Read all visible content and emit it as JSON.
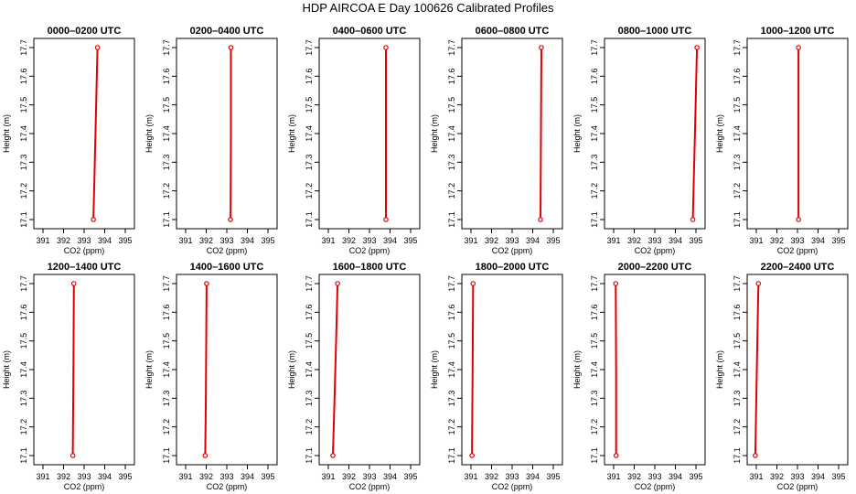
{
  "figure": {
    "title": "HDP AIRCOA E  Day 100626  Calibrated Profiles"
  },
  "chart_data": [
    {
      "type": "line",
      "title": "0000–0200 UTC",
      "xlabel": "CO2 (ppm)",
      "ylabel": "Height (m)",
      "xlim": [
        391,
        395
      ],
      "ylim": [
        17.1,
        17.7
      ],
      "xticks": [
        391,
        392,
        393,
        394,
        395
      ],
      "yticks": [
        17.1,
        17.2,
        17.3,
        17.4,
        17.5,
        17.6,
        17.7
      ],
      "grid": false,
      "series": [
        {
          "x": [
            393.45,
            393.5,
            393.55,
            393.6,
            393.65
          ],
          "y": [
            17.1,
            17.25,
            17.4,
            17.55,
            17.7
          ]
        }
      ],
      "markers": [
        {
          "x": 393.45,
          "y": 17.1
        },
        {
          "x": 393.65,
          "y": 17.7
        }
      ]
    },
    {
      "type": "line",
      "title": "0200–0400 UTC",
      "xlabel": "CO2 (ppm)",
      "ylabel": "Height (m)",
      "xlim": [
        391,
        395
      ],
      "ylim": [
        17.1,
        17.7
      ],
      "xticks": [
        391,
        392,
        393,
        394,
        395
      ],
      "yticks": [
        17.1,
        17.2,
        17.3,
        17.4,
        17.5,
        17.6,
        17.7
      ],
      "grid": false,
      "series": [
        {
          "x": [
            393.18,
            393.2,
            393.2
          ],
          "y": [
            17.1,
            17.4,
            17.7
          ]
        }
      ],
      "markers": [
        {
          "x": 393.18,
          "y": 17.1
        },
        {
          "x": 393.2,
          "y": 17.7
        }
      ]
    },
    {
      "type": "line",
      "title": "0400–0600 UTC",
      "xlabel": "CO2 (ppm)",
      "ylabel": "Height (m)",
      "xlim": [
        391,
        395
      ],
      "ylim": [
        17.1,
        17.7
      ],
      "xticks": [
        391,
        392,
        393,
        394,
        395
      ],
      "yticks": [
        17.1,
        17.2,
        17.3,
        17.4,
        17.5,
        17.6,
        17.7
      ],
      "grid": false,
      "series": [
        {
          "x": [
            393.8,
            393.8,
            393.8
          ],
          "y": [
            17.1,
            17.4,
            17.7
          ]
        }
      ],
      "markers": [
        {
          "x": 393.8,
          "y": 17.1
        },
        {
          "x": 393.8,
          "y": 17.7
        }
      ]
    },
    {
      "type": "line",
      "title": "0600–0800 UTC",
      "xlabel": "CO2 (ppm)",
      "ylabel": "Height (m)",
      "xlim": [
        391,
        395
      ],
      "ylim": [
        17.1,
        17.7
      ],
      "xticks": [
        391,
        392,
        393,
        394,
        395
      ],
      "yticks": [
        17.1,
        17.2,
        17.3,
        17.4,
        17.5,
        17.6,
        17.7
      ],
      "grid": false,
      "series": [
        {
          "x": [
            394.38,
            394.4,
            394.42
          ],
          "y": [
            17.1,
            17.4,
            17.7
          ]
        }
      ],
      "markers": [
        {
          "x": 394.38,
          "y": 17.1
        },
        {
          "x": 394.42,
          "y": 17.7
        }
      ]
    },
    {
      "type": "line",
      "title": "0800–1000 UTC",
      "xlabel": "CO2 (ppm)",
      "ylabel": "Height (m)",
      "xlim": [
        391,
        395
      ],
      "ylim": [
        17.1,
        17.7
      ],
      "xticks": [
        391,
        392,
        393,
        394,
        395
      ],
      "yticks": [
        17.1,
        17.2,
        17.3,
        17.4,
        17.5,
        17.6,
        17.7
      ],
      "grid": false,
      "series": [
        {
          "x": [
            394.85,
            394.9,
            394.95,
            395.0,
            395.05
          ],
          "y": [
            17.1,
            17.25,
            17.4,
            17.55,
            17.7
          ]
        }
      ],
      "markers": [
        {
          "x": 394.85,
          "y": 17.1
        },
        {
          "x": 395.05,
          "y": 17.7
        }
      ]
    },
    {
      "type": "line",
      "title": "1000–1200 UTC",
      "xlabel": "CO2 (ppm)",
      "ylabel": "Height (m)",
      "xlim": [
        391,
        395
      ],
      "ylim": [
        17.1,
        17.7
      ],
      "xticks": [
        391,
        392,
        393,
        394,
        395
      ],
      "yticks": [
        17.1,
        17.2,
        17.3,
        17.4,
        17.5,
        17.6,
        17.7
      ],
      "grid": false,
      "series": [
        {
          "x": [
            393.05,
            393.05,
            393.05
          ],
          "y": [
            17.1,
            17.4,
            17.7
          ]
        }
      ],
      "markers": [
        {
          "x": 393.05,
          "y": 17.1
        },
        {
          "x": 393.05,
          "y": 17.7
        }
      ]
    },
    {
      "type": "line",
      "title": "1200–1400 UTC",
      "xlabel": "CO2 (ppm)",
      "ylabel": "Height (m)",
      "xlim": [
        391,
        395
      ],
      "ylim": [
        17.1,
        17.7
      ],
      "xticks": [
        391,
        392,
        393,
        394,
        395
      ],
      "yticks": [
        17.1,
        17.2,
        17.3,
        17.4,
        17.5,
        17.6,
        17.7
      ],
      "grid": false,
      "series": [
        {
          "x": [
            392.45,
            392.48,
            392.5
          ],
          "y": [
            17.1,
            17.4,
            17.7
          ]
        }
      ],
      "markers": [
        {
          "x": 392.45,
          "y": 17.1
        },
        {
          "x": 392.5,
          "y": 17.7
        }
      ]
    },
    {
      "type": "line",
      "title": "1400–1600 UTC",
      "xlabel": "CO2 (ppm)",
      "ylabel": "Height (m)",
      "xlim": [
        391,
        395
      ],
      "ylim": [
        17.1,
        17.7
      ],
      "xticks": [
        391,
        392,
        393,
        394,
        395
      ],
      "yticks": [
        17.1,
        17.2,
        17.3,
        17.4,
        17.5,
        17.6,
        17.7
      ],
      "grid": false,
      "series": [
        {
          "x": [
            391.95,
            391.98,
            392.0,
            392.02
          ],
          "y": [
            17.1,
            17.3,
            17.5,
            17.7
          ]
        }
      ],
      "markers": [
        {
          "x": 391.95,
          "y": 17.1
        },
        {
          "x": 392.02,
          "y": 17.7
        }
      ]
    },
    {
      "type": "line",
      "title": "1600–1800 UTC",
      "xlabel": "CO2 (ppm)",
      "ylabel": "Height (m)",
      "xlim": [
        391,
        395
      ],
      "ylim": [
        17.1,
        17.7
      ],
      "xticks": [
        391,
        392,
        393,
        394,
        395
      ],
      "yticks": [
        17.1,
        17.2,
        17.3,
        17.4,
        17.5,
        17.6,
        17.7
      ],
      "grid": false,
      "series": [
        {
          "x": [
            391.22,
            391.3,
            391.38,
            391.45
          ],
          "y": [
            17.1,
            17.3,
            17.5,
            17.7
          ]
        }
      ],
      "markers": [
        {
          "x": 391.22,
          "y": 17.1
        },
        {
          "x": 391.45,
          "y": 17.7
        }
      ]
    },
    {
      "type": "line",
      "title": "1800–2000 UTC",
      "xlabel": "CO2 (ppm)",
      "ylabel": "Height (m)",
      "xlim": [
        391,
        395
      ],
      "ylim": [
        17.1,
        17.7
      ],
      "xticks": [
        391,
        392,
        393,
        394,
        395
      ],
      "yticks": [
        17.1,
        17.2,
        17.3,
        17.4,
        17.5,
        17.6,
        17.7
      ],
      "grid": false,
      "series": [
        {
          "x": [
            391.05,
            391.08,
            391.1
          ],
          "y": [
            17.1,
            17.4,
            17.7
          ]
        }
      ],
      "markers": [
        {
          "x": 391.05,
          "y": 17.1
        },
        {
          "x": 391.1,
          "y": 17.7
        }
      ]
    },
    {
      "type": "line",
      "title": "2000–2200 UTC",
      "xlabel": "CO2 (ppm)",
      "ylabel": "Height (m)",
      "xlim": [
        391,
        395
      ],
      "ylim": [
        17.1,
        17.7
      ],
      "xticks": [
        391,
        392,
        393,
        394,
        395
      ],
      "yticks": [
        17.1,
        17.2,
        17.3,
        17.4,
        17.5,
        17.6,
        17.7
      ],
      "grid": false,
      "series": [
        {
          "x": [
            391.12,
            391.12,
            391.1
          ],
          "y": [
            17.1,
            17.4,
            17.7
          ]
        }
      ],
      "markers": [
        {
          "x": 391.12,
          "y": 17.1
        },
        {
          "x": 391.1,
          "y": 17.7
        }
      ]
    },
    {
      "type": "line",
      "title": "2200–2400 UTC",
      "xlabel": "CO2 (ppm)",
      "ylabel": "Height (m)",
      "xlim": [
        391,
        395
      ],
      "ylim": [
        17.1,
        17.7
      ],
      "xticks": [
        391,
        392,
        393,
        394,
        395
      ],
      "yticks": [
        17.1,
        17.2,
        17.3,
        17.4,
        17.5,
        17.6,
        17.7
      ],
      "grid": false,
      "series": [
        {
          "x": [
            390.95,
            391.0,
            391.05,
            391.1
          ],
          "y": [
            17.1,
            17.3,
            17.5,
            17.7
          ]
        }
      ],
      "markers": [
        {
          "x": 390.95,
          "y": 17.1
        },
        {
          "x": 391.1,
          "y": 17.7
        }
      ]
    }
  ]
}
